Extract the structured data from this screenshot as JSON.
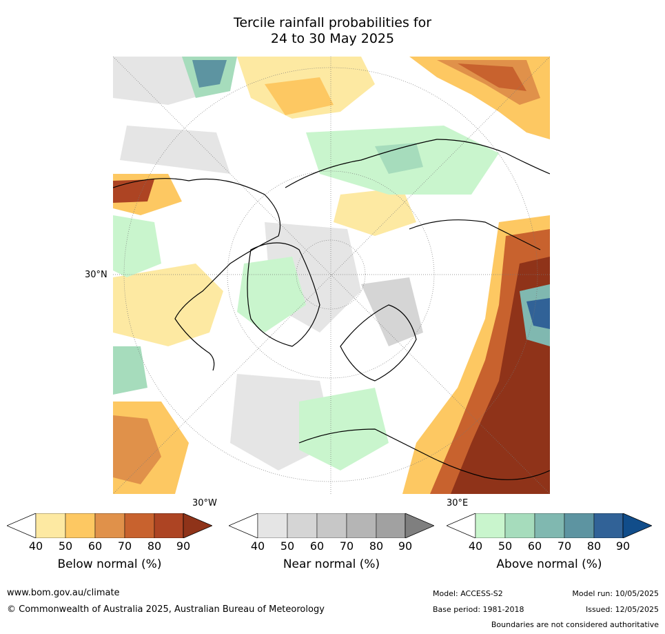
{
  "title": {
    "line1": "Tercile rainfall probabilities for",
    "line2": "24 to 30 May 2025"
  },
  "map": {
    "label_30N": "30°N",
    "label_30W": "30°W",
    "label_30E": "30°E",
    "projection": "north polar stereographic",
    "colors": {
      "below": [
        "#fde9a2",
        "#fdc862",
        "#e0914a",
        "#c8622e",
        "#ad4423",
        "#8f3319"
      ],
      "near": [
        "#e5e5e5",
        "#d5d5d5",
        "#c7c7c7",
        "#b5b5b5",
        "#a1a1a1",
        "#7f7f7f"
      ],
      "above": [
        "#c9f5cd",
        "#a6dcbc",
        "#80b8b0",
        "#5d94a1",
        "#316297",
        "#114d8a"
      ],
      "coast": "#000000",
      "border": "#808080"
    }
  },
  "colorbars": [
    {
      "label": "Below normal (%)",
      "ticks": [
        "40",
        "50",
        "60",
        "70",
        "80",
        "90"
      ],
      "colors": [
        "#fde9a2",
        "#fdc862",
        "#e0914a",
        "#c8622e",
        "#ad4423",
        "#8f3319"
      ]
    },
    {
      "label": "Near normal (%)",
      "ticks": [
        "40",
        "50",
        "60",
        "70",
        "80",
        "90"
      ],
      "colors": [
        "#e5e5e5",
        "#d5d5d5",
        "#c7c7c7",
        "#b5b5b5",
        "#a1a1a1",
        "#7f7f7f"
      ]
    },
    {
      "label": "Above normal (%)",
      "ticks": [
        "40",
        "50",
        "60",
        "70",
        "80",
        "90"
      ],
      "colors": [
        "#c9f5cd",
        "#a6dcbc",
        "#80b8b0",
        "#5d94a1",
        "#316297",
        "#114d8a"
      ]
    }
  ],
  "footer": {
    "website": "www.bom.gov.au/climate",
    "copyright": "© Commonwealth of Australia 2025, Australian Bureau of Meteorology",
    "model": "Model: ACCESS-S2",
    "model_run": "Model run: 10/05/2025",
    "base_period": "Base period: 1981-2018",
    "issued": "Issued: 12/05/2025",
    "disclaimer": "Boundaries are not considered authoritative"
  }
}
